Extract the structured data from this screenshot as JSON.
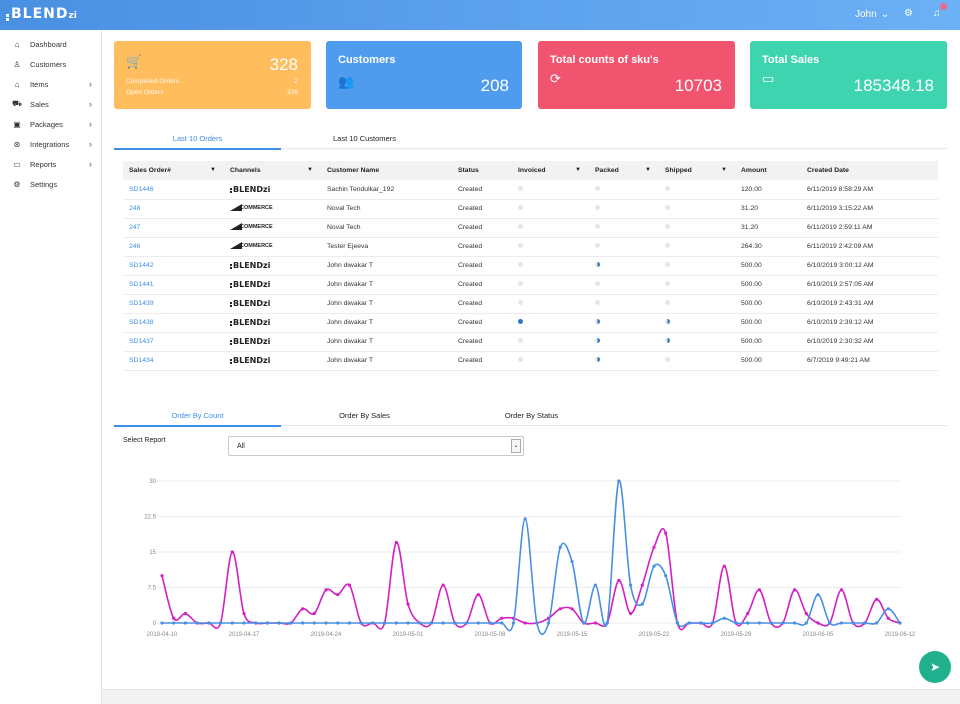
{
  "brand": {
    "name": "BLEND",
    "suffix": "zi"
  },
  "header": {
    "user": "John",
    "user_chevron": "⌄",
    "settings_icon": "gear-icon",
    "notifications_icon": "bell-icon"
  },
  "sidebar": {
    "items": [
      {
        "label": "Dashboard",
        "icon": "home-icon",
        "glyph": "⌂",
        "has_children": false
      },
      {
        "label": "Customers",
        "icon": "user-icon",
        "glyph": "♙",
        "has_children": false
      },
      {
        "label": "Items",
        "icon": "items-icon",
        "glyph": "⌂",
        "has_children": true
      },
      {
        "label": "Sales",
        "icon": "cart-icon",
        "glyph": "⛟",
        "has_children": true
      },
      {
        "label": "Packages",
        "icon": "package-icon",
        "glyph": "▣",
        "has_children": true
      },
      {
        "label": "Integrations",
        "icon": "integrations-icon",
        "glyph": "⊛",
        "has_children": true
      },
      {
        "label": "Reports",
        "icon": "reports-icon",
        "glyph": "▭",
        "has_children": true
      },
      {
        "label": "Settings",
        "icon": "settings-icon",
        "glyph": "⚙",
        "has_children": false
      }
    ],
    "chevron": "›"
  },
  "cards": {
    "orders": {
      "icon": "cart-icon",
      "value": "328",
      "completed_label": "Completed Orders",
      "completed_value": "2",
      "open_label": "Open Orders",
      "open_value": "326",
      "color": "#ffbd5e"
    },
    "customers": {
      "title": "Customers",
      "icon": "users-icon",
      "value": "208",
      "color": "#4f9cef"
    },
    "sku": {
      "title": "Total counts of sku's",
      "icon": "refresh-icon",
      "value": "10703",
      "color": "#f0546e"
    },
    "sales": {
      "title": "Total Sales",
      "icon": "wallet-icon",
      "value": "185348.18",
      "color": "#3fd4b0"
    }
  },
  "top_tabs": [
    {
      "label": "Last 10 Orders",
      "active": true
    },
    {
      "label": "Last 10 Customers",
      "active": false
    }
  ],
  "orders_table": {
    "headers": {
      "order": "Sales Order#",
      "channels": "Channels",
      "customer": "Customer Name",
      "status": "Status",
      "invoiced": "Invoiced",
      "packed": "Packed",
      "shipped": "Shipped",
      "amount": "Amount",
      "created": "Created Date"
    },
    "rows": [
      {
        "order": "SD1446",
        "channel": "blendzi",
        "customer": "Sachin Tendulkar_192",
        "status": "Created",
        "invoiced": "empty",
        "packed": "empty",
        "shipped": "empty",
        "amount": "120.00",
        "created": "6/11/2019 8:58:29 AM"
      },
      {
        "order": "248",
        "channel": "bigcommerce",
        "customer": "Noval Tech",
        "status": "Created",
        "invoiced": "empty",
        "packed": "empty",
        "shipped": "empty",
        "amount": "31.20",
        "created": "6/11/2019 3:15:22 AM"
      },
      {
        "order": "247",
        "channel": "bigcommerce",
        "customer": "Noval Tech",
        "status": "Created",
        "invoiced": "empty",
        "packed": "empty",
        "shipped": "empty",
        "amount": "31.20",
        "created": "6/11/2019 2:59:11 AM"
      },
      {
        "order": "246",
        "channel": "bigcommerce",
        "customer": "Tester Ejeeva",
        "status": "Created",
        "invoiced": "empty",
        "packed": "empty",
        "shipped": "empty",
        "amount": "264.30",
        "created": "6/11/2019 2:42:09 AM"
      },
      {
        "order": "SD1442",
        "channel": "blendzi",
        "customer": "John diwakar T",
        "status": "Created",
        "invoiced": "empty",
        "packed": "half",
        "shipped": "empty",
        "amount": "500.00",
        "created": "6/10/2019 3:00:12 AM"
      },
      {
        "order": "SD1441",
        "channel": "blendzi",
        "customer": "John diwakar T",
        "status": "Created",
        "invoiced": "empty",
        "packed": "empty",
        "shipped": "empty",
        "amount": "500.00",
        "created": "6/10/2019 2:57:05 AM"
      },
      {
        "order": "SD1439",
        "channel": "blendzi",
        "customer": "John diwakar T",
        "status": "Created",
        "invoiced": "empty",
        "packed": "empty",
        "shipped": "empty",
        "amount": "500.00",
        "created": "6/10/2019 2:43:31 AM"
      },
      {
        "order": "SD1438",
        "channel": "blendzi",
        "customer": "John diwakar T",
        "status": "Created",
        "invoiced": "full",
        "packed": "half",
        "shipped": "half",
        "amount": "500.00",
        "created": "6/10/2019 2:39:12 AM"
      },
      {
        "order": "SD1437",
        "channel": "blendzi",
        "customer": "John diwakar T",
        "status": "Created",
        "invoiced": "empty",
        "packed": "half",
        "shipped": "half",
        "amount": "500.00",
        "created": "6/10/2019 2:30:32 AM"
      },
      {
        "order": "SD1434",
        "channel": "blendzi",
        "customer": "John diwakar T",
        "status": "Created",
        "invoiced": "empty",
        "packed": "half",
        "shipped": "empty",
        "amount": "500.00",
        "created": "6/7/2019 9:49:21 AM"
      }
    ],
    "channel_labels": {
      "blendzi": "BLENDzi",
      "bigcommerce": "COMMERCE"
    }
  },
  "chart_tabs": [
    {
      "label": "Order By Count",
      "active": true
    },
    {
      "label": "Order By Sales",
      "active": false
    },
    {
      "label": "Order By Status",
      "active": false
    }
  ],
  "report_select": {
    "label": "Select Report",
    "value": "All"
  },
  "chart_data": {
    "type": "line",
    "x": [
      "2019-04-10",
      "2019-04-11",
      "2019-04-12",
      "2019-04-13",
      "2019-04-14",
      "2019-04-15",
      "2019-04-16",
      "2019-04-17",
      "2019-04-18",
      "2019-04-19",
      "2019-04-20",
      "2019-04-21",
      "2019-04-22",
      "2019-04-23",
      "2019-04-24",
      "2019-04-25",
      "2019-04-26",
      "2019-04-27",
      "2019-04-28",
      "2019-04-29",
      "2019-04-30",
      "2019-05-01",
      "2019-05-02",
      "2019-05-03",
      "2019-05-04",
      "2019-05-05",
      "2019-05-06",
      "2019-05-07",
      "2019-05-08",
      "2019-05-09",
      "2019-05-10",
      "2019-05-11",
      "2019-05-12",
      "2019-05-13",
      "2019-05-14",
      "2019-05-15",
      "2019-05-16",
      "2019-05-17",
      "2019-05-18",
      "2019-05-19",
      "2019-05-20",
      "2019-05-21",
      "2019-05-22",
      "2019-05-23",
      "2019-05-24",
      "2019-05-25",
      "2019-05-26",
      "2019-05-27",
      "2019-05-28",
      "2019-05-29",
      "2019-05-30",
      "2019-05-31",
      "2019-06-01",
      "2019-06-02",
      "2019-06-03",
      "2019-06-04",
      "2019-06-05",
      "2019-06-06",
      "2019-06-07",
      "2019-06-08",
      "2019-06-09",
      "2019-06-10",
      "2019-06-11",
      "2019-06-12"
    ],
    "x_ticks": [
      "2019-04-10",
      "2019-04-17",
      "2019-04-24",
      "2019-05-01",
      "2019-05-08",
      "2019-05-15",
      "2019-05-22",
      "2019-05-29",
      "2019-06-05",
      "2019-06-12"
    ],
    "y_ticks": [
      "0",
      "7.5",
      "15",
      "22.5",
      "30"
    ],
    "ylim": [
      0,
      30
    ],
    "series": [
      {
        "color": "#d41fc4",
        "values": [
          10,
          1,
          2,
          0,
          0,
          0,
          15,
          2,
          0,
          0,
          0,
          0,
          3,
          2,
          7,
          6,
          8,
          0,
          0,
          0,
          17,
          4,
          0,
          0,
          8,
          0,
          0,
          6,
          0,
          1,
          1,
          0,
          0,
          1,
          3,
          3,
          0,
          0,
          0,
          9,
          2,
          8,
          16,
          19,
          0,
          0,
          0,
          0,
          12,
          0,
          2,
          7,
          0,
          0,
          7,
          2,
          0,
          0,
          7,
          0,
          0,
          5,
          1,
          0
        ]
      },
      {
        "color": "#4a90e2",
        "values": [
          0,
          0,
          0,
          0,
          0,
          0,
          0,
          0,
          0,
          0,
          0,
          0,
          0,
          0,
          0,
          0,
          0,
          0,
          0,
          0,
          0,
          0,
          0,
          0,
          0,
          0,
          0,
          0,
          0,
          0,
          0,
          22,
          0,
          0,
          16,
          13,
          0,
          8,
          0,
          30,
          8,
          4,
          12,
          10,
          0,
          0,
          0,
          0,
          1,
          0,
          0,
          0,
          0,
          0,
          0,
          0,
          6,
          0,
          0,
          0,
          0,
          0,
          3,
          0
        ]
      }
    ]
  },
  "fab": {
    "icon": "chat-icon"
  }
}
